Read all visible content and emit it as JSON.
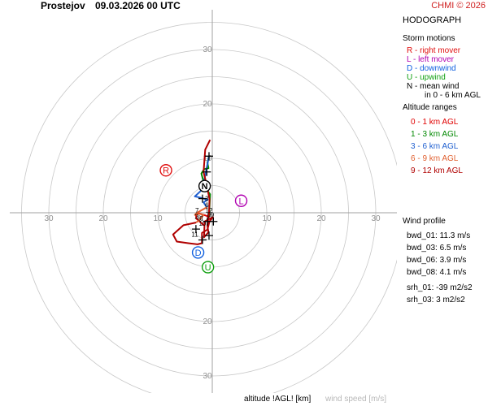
{
  "header": {
    "station": "Prostejov",
    "datetime": "09.03.2026 00 UTC",
    "copyright": "CHMI © 2026"
  },
  "panel": {
    "title": "HODOGRAPH",
    "storm_motions_title": "Storm motions",
    "storm_motions": [
      {
        "key": "R",
        "text": "R - right mover",
        "color": "#e01010"
      },
      {
        "key": "L",
        "text": "L - left mover",
        "color": "#b000b0"
      },
      {
        "key": "D",
        "text": "D - downwind",
        "color": "#1060e0"
      },
      {
        "key": "U",
        "text": "U - upwind",
        "color": "#10a010"
      },
      {
        "key": "N",
        "text": "N - mean wind",
        "color": "#000000"
      }
    ],
    "mean_wind_note": "in 0 - 6 km AGL",
    "altitude_title": "Altitude ranges",
    "altitude_ranges": [
      {
        "text": "0 - 1 km AGL",
        "color": "#e00000"
      },
      {
        "text": "1 - 3 km AGL",
        "color": "#008800"
      },
      {
        "text": "3 - 6 km AGL",
        "color": "#2060d0"
      },
      {
        "text": "6 - 9 km AGL",
        "color": "#e06030"
      },
      {
        "text": "9 - 12 km AGL",
        "color": "#b00000"
      }
    ],
    "wind_profile_title": "Wind profile",
    "wind_profile": [
      "bwd_01: 11.3 m/s",
      "bwd_03: 6.5 m/s",
      "bwd_06: 3.9 m/s",
      "bwd_08: 4.1 m/s"
    ],
    "srh": [
      "srh_01: -39 m2/s2",
      "srh_03: 3 m2/s2"
    ]
  },
  "footer": {
    "altitude_label": "altitude !AGL! [km]",
    "wind_label": "wind speed [m/s]"
  },
  "chart_data": {
    "type": "line",
    "axis": {
      "range": [
        -30,
        30
      ],
      "ring_step": 5,
      "tick_labels": [
        10,
        20,
        30
      ],
      "grid": true,
      "units": "m/s"
    },
    "storm_motions": [
      {
        "label": "R",
        "u": -8.5,
        "v": 7.8,
        "color": "#e01010"
      },
      {
        "label": "L",
        "u": 5.3,
        "v": 2.2,
        "color": "#b000b0"
      },
      {
        "label": "D",
        "u": -2.6,
        "v": -7.3,
        "color": "#1060e0"
      },
      {
        "label": "U",
        "u": -0.8,
        "v": -10.0,
        "color": "#10a010"
      },
      {
        "label": "N",
        "u": -1.4,
        "v": 4.9,
        "color": "#000000"
      }
    ],
    "series": [
      {
        "range": "0 - 1 km AGL",
        "color": "#e00000",
        "points": [
          [
            -1.6,
            -2.3
          ],
          [
            -2.0,
            -1.9
          ],
          [
            -2.9,
            -1.1
          ],
          [
            -3.0,
            -0.4
          ],
          [
            -2.4,
            -0.1
          ],
          [
            -1.9,
            -0.3
          ],
          [
            -1.2,
            -0.5
          ],
          [
            -0.6,
            -0.8
          ]
        ]
      },
      {
        "range": "1 - 3 km AGL",
        "color": "#008800",
        "points": [
          [
            -0.6,
            -0.8
          ],
          [
            -0.4,
            3.4
          ],
          [
            -1.3,
            4.6
          ],
          [
            -2.0,
            7.2
          ],
          [
            -1.5,
            8.0
          ],
          [
            -0.7,
            8.2
          ],
          [
            -0.9,
            9.2
          ],
          [
            -0.6,
            10.4
          ]
        ]
      },
      {
        "range": "3 - 6 km AGL",
        "color": "#2060d0",
        "points": [
          [
            -0.6,
            10.4
          ],
          [
            -1.8,
            4.3
          ],
          [
            -3.2,
            3.0
          ],
          [
            -2.3,
            2.8
          ],
          [
            -0.9,
            2.4
          ],
          [
            -1.6,
            1.9
          ],
          [
            -1.0,
            1.0
          ]
        ]
      },
      {
        "range": "6 - 9 km AGL",
        "color": "#e06030",
        "points": [
          [
            -1.0,
            1.0
          ],
          [
            -2.8,
            0.0
          ],
          [
            -3.2,
            -0.4
          ],
          [
            -2.3,
            -0.2
          ],
          [
            -1.6,
            -0.4
          ],
          [
            -2.4,
            -1.4
          ],
          [
            -3.0,
            -1.8
          ]
        ]
      },
      {
        "range": "9 - 12 km AGL",
        "color": "#b00000",
        "points": [
          [
            -3.0,
            -1.8
          ],
          [
            -5.3,
            -2.3
          ],
          [
            -7.2,
            -4.0
          ],
          [
            -6.5,
            -5.3
          ],
          [
            -4.4,
            -5.6
          ],
          [
            -2.7,
            -5.8
          ],
          [
            -1.9,
            -5.6
          ],
          [
            -1.9,
            -3.7
          ],
          [
            -0.9,
            -3.1
          ],
          [
            -0.5,
            -1.6
          ],
          [
            0.1,
            -0.8
          ],
          [
            -1.4,
            -1.6
          ],
          [
            -1.5,
            -4.5
          ],
          [
            -0.7,
            -3.6
          ],
          [
            -0.9,
            -2.4
          ],
          [
            -0.6,
            0.0
          ],
          [
            -0.5,
            2.5
          ],
          [
            -1.0,
            5.0
          ],
          [
            -1.6,
            7.5
          ],
          [
            -1.3,
            11.6
          ],
          [
            -0.4,
            13.4
          ]
        ]
      }
    ],
    "height_marks": [
      {
        "label": "0",
        "u": -0.6,
        "v": -0.8
      },
      {
        "label": "1",
        "u": -1.9,
        "v": -1.4
      },
      {
        "label": "2",
        "u": -2.9,
        "v": -1.1
      },
      {
        "label": "3",
        "u": -1.0,
        "v": 2.2
      },
      {
        "label": "6",
        "u": -1.0,
        "v": 1.0
      },
      {
        "label": "7",
        "u": -2.8,
        "v": 0.0
      },
      {
        "label": "8",
        "u": -2.4,
        "v": -1.4
      },
      {
        "label": "9",
        "u": 0.0,
        "v": -0.8
      },
      {
        "label": "10",
        "u": -1.8,
        "v": -2.4
      },
      {
        "label": "11",
        "u": -3.2,
        "v": -4.4
      },
      {
        "label": "12",
        "u": -0.6,
        "v": 0.0
      }
    ],
    "height_mark_crosses": [
      [
        -0.6,
        10.4
      ],
      [
        -1.0,
        7.5
      ],
      [
        -1.3,
        4.6
      ],
      [
        -1.8,
        2.6
      ],
      [
        -0.9,
        -1.6
      ],
      [
        0.2,
        -1.6
      ],
      [
        -3.0,
        -3.0
      ],
      [
        -1.8,
        -5.0
      ],
      [
        -0.6,
        -4.2
      ]
    ]
  }
}
